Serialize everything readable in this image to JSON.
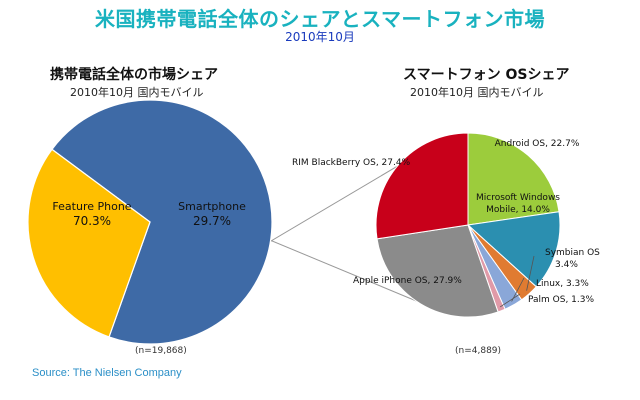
{
  "title": "米国携帯電話全体のシェアとスマートフォン市場",
  "subtitle": "2010年10月",
  "source": "Source: The Nielsen Company",
  "chart_data": [
    {
      "type": "pie",
      "title": "携帯電話全体の市場シェア",
      "subtitle": "2010年10月 国内モバイル",
      "note": "(n=19,868)",
      "slices": [
        {
          "name": "Feature Phone",
          "value": 70.3,
          "label": "70.3%",
          "color": "#3e6aa6"
        },
        {
          "name": "Smartphone",
          "value": 29.7,
          "label": "29.7%",
          "color": "#ffbf00"
        }
      ]
    },
    {
      "type": "pie",
      "title": "スマートフォン OSシェア",
      "subtitle": "2010年10月 国内モバイル",
      "note": "(n=4,889)",
      "slices": [
        {
          "name": "Android OS",
          "value": 22.7,
          "label": "Android OS, 22.7%",
          "color": "#9ccc3c"
        },
        {
          "name": "Microsoft Windows Mobile",
          "value": 14.0,
          "label": "Microsoft Windows Mobile, 14.0%",
          "color": "#2b8fb0"
        },
        {
          "name": "Symbian OS",
          "value": 3.4,
          "label": "Symbian OS 3.4%",
          "color": "#e07b31"
        },
        {
          "name": "Linux",
          "value": 3.3,
          "label": "Linux, 3.3%",
          "color": "#8aa7d8"
        },
        {
          "name": "Palm OS",
          "value": 1.3,
          "label": "Palm OS, 1.3%",
          "color": "#e09aa8"
        },
        {
          "name": "Apple iPhone OS",
          "value": 27.9,
          "label": "Apple iPhone OS, 27.9%",
          "color": "#8b8b8b"
        },
        {
          "name": "RIM BlackBerry OS",
          "value": 27.4,
          "label": "RIM BlackBerry OS, 27.4%",
          "color": "#c8001a"
        }
      ]
    }
  ]
}
